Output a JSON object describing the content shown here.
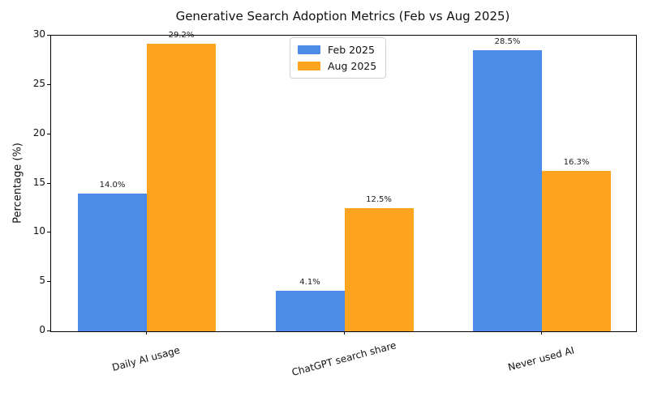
{
  "chart_data": {
    "type": "bar",
    "title": "Generative Search Adoption Metrics (Feb vs Aug 2025)",
    "xlabel": "",
    "ylabel": "Percentage (%)",
    "categories": [
      "Daily AI usage",
      "ChatGPT search share",
      "Never used AI"
    ],
    "series": [
      {
        "name": "Feb 2025",
        "color": "#4a8ce8",
        "values": [
          14.0,
          4.1,
          28.5
        ],
        "labels": [
          "14.0%",
          "4.1%",
          "28.5%"
        ]
      },
      {
        "name": "Aug 2025",
        "color": "#ffa41e",
        "values": [
          29.2,
          12.5,
          16.3
        ],
        "labels": [
          "29.2%",
          "12.5%",
          "16.3%"
        ]
      }
    ],
    "ylim": [
      0,
      30
    ],
    "yticks": [
      0,
      5,
      10,
      15,
      20,
      25,
      30
    ],
    "grid": false,
    "legend_position": "upper center",
    "bar_label_format": "{value}%"
  }
}
